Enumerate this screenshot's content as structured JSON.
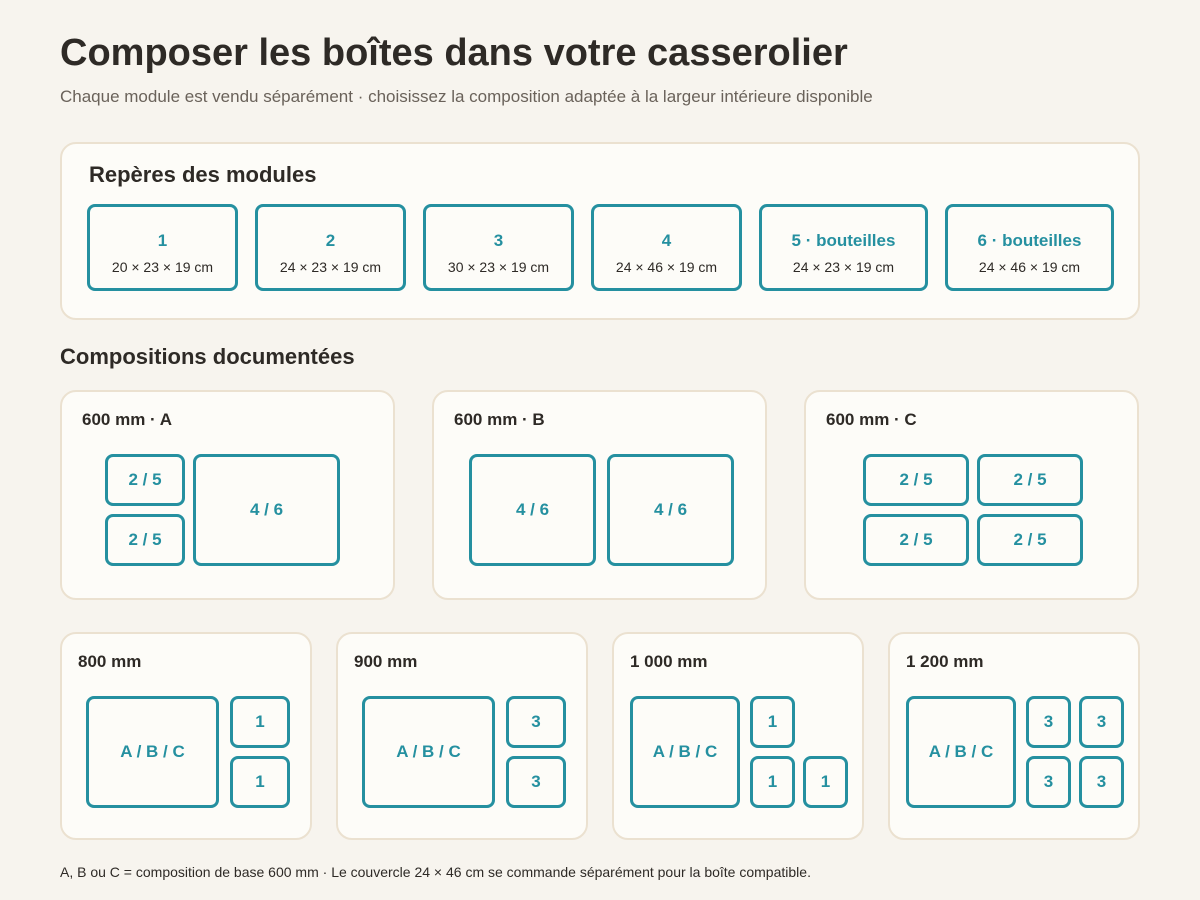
{
  "header": {
    "title": "Composer les boîtes dans votre casserolier",
    "subtitle": "Chaque module est vendu séparément · choisissez la composition adaptée à la largeur intérieure disponible"
  },
  "modules": {
    "title": "Repères des modules",
    "items": [
      {
        "name": "1",
        "size": "20 × 23 × 19 cm"
      },
      {
        "name": "2",
        "size": "24 × 23 × 19 cm"
      },
      {
        "name": "3",
        "size": "30 × 23 × 19 cm"
      },
      {
        "name": "4",
        "size": "24 × 46 × 19 cm"
      },
      {
        "name": "5 · bouteilles",
        "size": "24 × 23 × 19 cm"
      },
      {
        "name": "6 · bouteilles",
        "size": "24 × 46 × 19 cm"
      }
    ]
  },
  "compositions": {
    "title": "Compositions documentées",
    "cards": [
      {
        "title": "600 mm · A",
        "boxes": [
          "2 / 5",
          "2 / 5",
          "4 / 6"
        ]
      },
      {
        "title": "600 mm · B",
        "boxes": [
          "4 / 6",
          "4 / 6"
        ]
      },
      {
        "title": "600 mm · C",
        "boxes": [
          "2 / 5",
          "2 / 5",
          "2 / 5",
          "2 / 5"
        ]
      },
      {
        "title": "800 mm",
        "boxes": [
          "A / B / C",
          "1",
          "1"
        ]
      },
      {
        "title": "900 mm",
        "boxes": [
          "A / B / C",
          "3",
          "3"
        ]
      },
      {
        "title": "1 000 mm",
        "boxes": [
          "A / B / C",
          "1",
          "1",
          "1"
        ]
      },
      {
        "title": "1 200 mm",
        "boxes": [
          "A / B / C",
          "3",
          "3",
          "3",
          "3"
        ]
      }
    ]
  },
  "footer": {
    "note": "A, B ou C = composition de base 600 mm · Le couvercle 24 × 46 cm se commande séparément pour la boîte compatible."
  }
}
